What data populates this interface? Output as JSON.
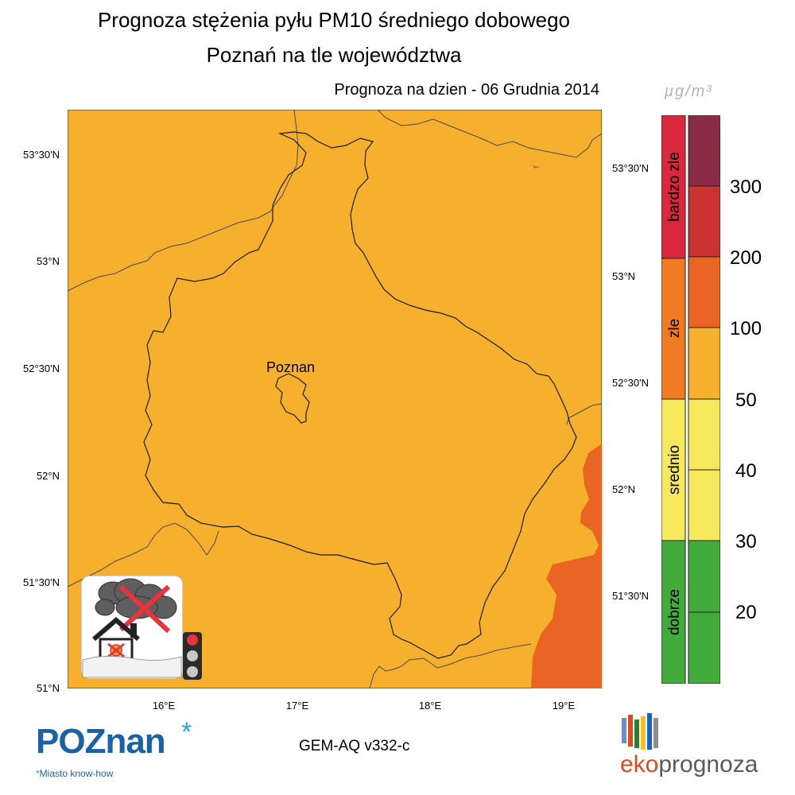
{
  "title_line1": "Prognoza stężenia pyłu PM10 średniego dobowego",
  "title_line2": "Poznań na tle województwa",
  "forecast_date": "Prognoza na dzien -  06 Grudnia 2014",
  "unit": "μg/m³",
  "city_label": "Poznan",
  "model": "GEM-AQ v332-c",
  "lat_labels_left": [
    "53°30'N",
    "53°N",
    "52°30'N",
    "52°N",
    "51°30'N",
    "51°N"
  ],
  "lat_labels_right": [
    "53°30'N",
    "53°N",
    "52°30'N",
    "52°N",
    "51°30'N"
  ],
  "lon_labels": [
    "16°E",
    "17°E",
    "18°E",
    "19°E"
  ],
  "scale": {
    "categories": [
      {
        "label": "bardzo zle",
        "color": "#d9283c"
      },
      {
        "label": "zle",
        "color": "#ef7b22"
      },
      {
        "label": "srednio",
        "color": "#f6e85c"
      },
      {
        "label": "dobrze",
        "color": "#43ab3c"
      }
    ],
    "levels": [
      {
        "color": "#8b2c46"
      },
      {
        "color": "#cd3232"
      },
      {
        "color": "#ea6424"
      },
      {
        "color": "#f7b02e"
      },
      {
        "color": "#f6e85c"
      },
      {
        "color": "#f6e85c"
      },
      {
        "color": "#43ab3c"
      },
      {
        "color": "#43ab3c"
      }
    ],
    "thresholds": [
      "300",
      "200",
      "100",
      "50",
      "40",
      "30",
      "20"
    ]
  },
  "map_colors": {
    "background": "#f7b02e",
    "high": "#ea6424",
    "border": "#3a3a3a"
  },
  "logo_poznan": {
    "text": "POZnan",
    "tagline": "Miasto know-how",
    "color": "#1a62a8"
  },
  "logo_ekoprognoza": {
    "part1": "eko",
    "part2": "prognoza",
    "color1": "#e0481f",
    "color2": "#5a5a5a"
  }
}
